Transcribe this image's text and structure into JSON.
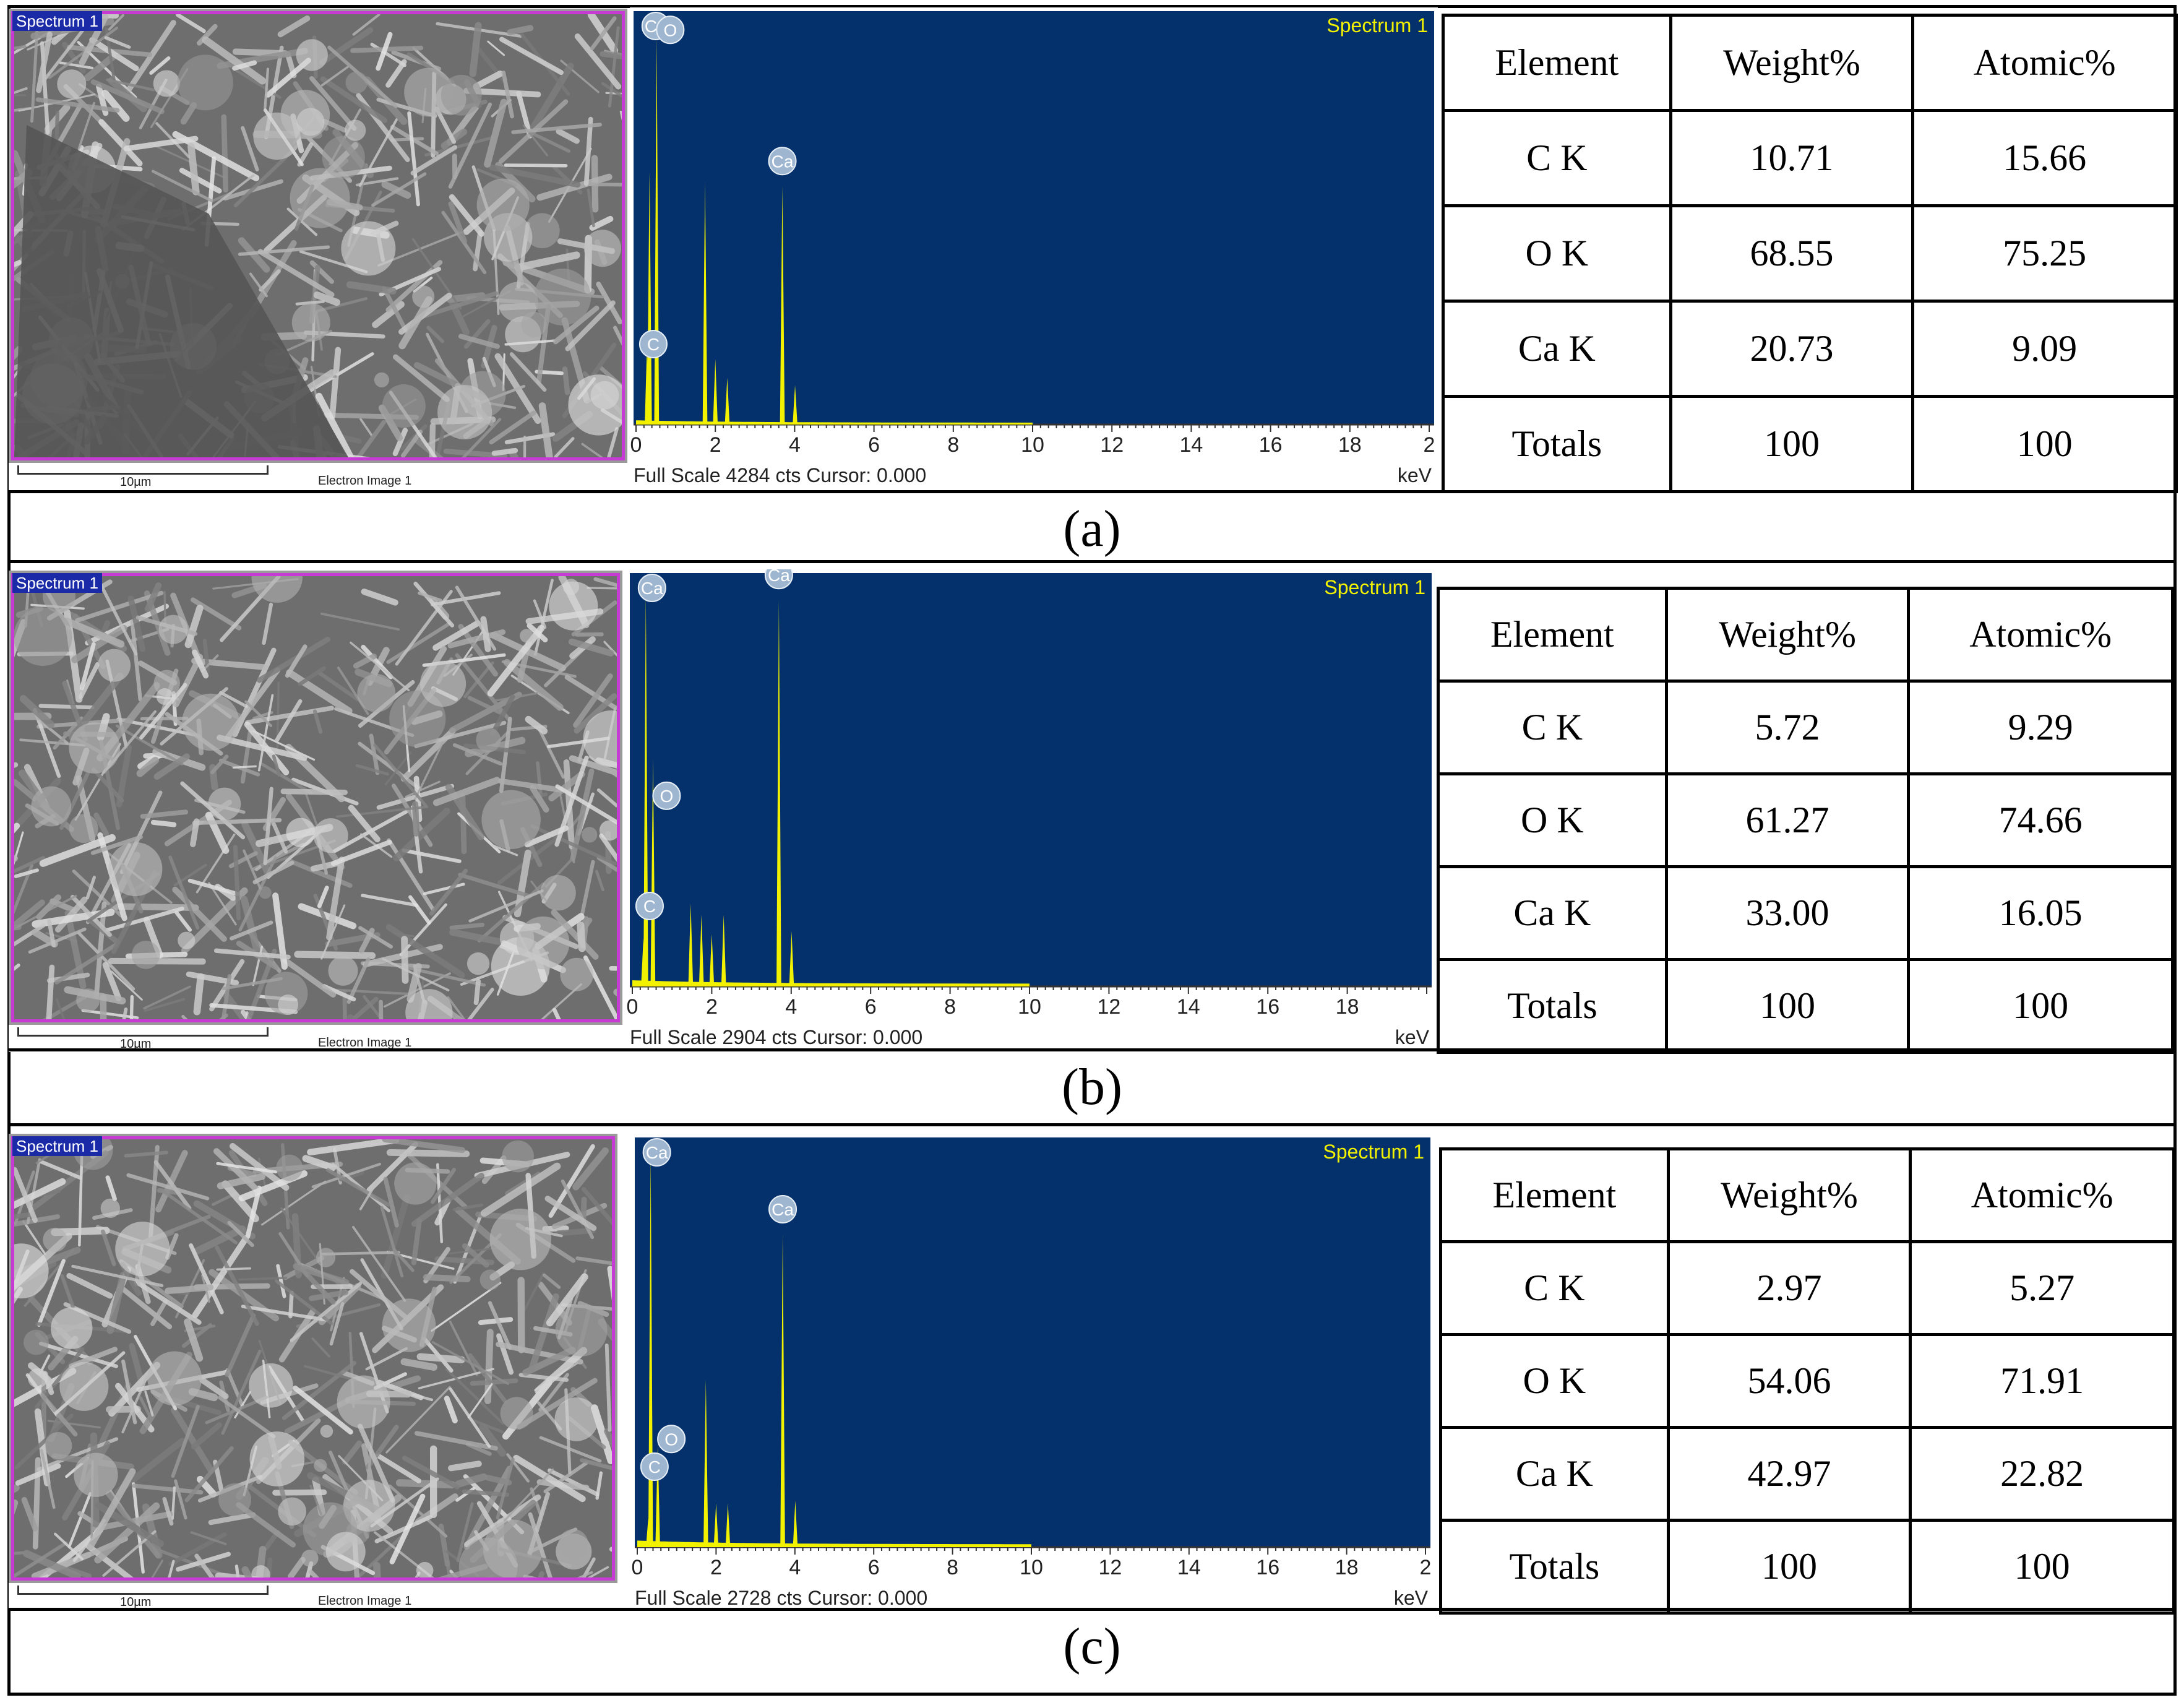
{
  "panels": [
    {
      "caption": "(a)",
      "sem": {
        "tag": "Spectrum 1",
        "scale": "10µm",
        "label": "Electron Image 1"
      },
      "spectrum": {
        "title": "Spectrum 1",
        "footer": "Full Scale 4284 cts Cursor: 0.000",
        "unit": "keV",
        "xticks": [
          "0",
          "2",
          "4",
          "6",
          "8",
          "10",
          "12",
          "14",
          "16",
          "18",
          "2"
        ]
      },
      "table": {
        "headers": [
          "Element",
          "Weight%",
          "Atomic%"
        ],
        "rows": [
          [
            "C K",
            "10.71",
            "15.66"
          ],
          [
            "O K",
            "68.55",
            "75.25"
          ],
          [
            "Ca K",
            "20.73",
            "9.09"
          ],
          [
            "Totals",
            "100",
            "100"
          ]
        ]
      }
    },
    {
      "caption": "(b)",
      "sem": {
        "tag": "Spectrum 1",
        "scale": "10µm",
        "label": "Electron Image 1"
      },
      "spectrum": {
        "title": "Spectrum 1",
        "footer": "Full Scale 2904 cts Cursor: 0.000",
        "unit": "keV",
        "xticks": [
          "0",
          "2",
          "4",
          "6",
          "8",
          "10",
          "12",
          "14",
          "16",
          "18"
        ]
      },
      "table": {
        "headers": [
          "Element",
          "Weight%",
          "Atomic%"
        ],
        "rows": [
          [
            "C K",
            "5.72",
            "9.29"
          ],
          [
            "O K",
            "61.27",
            "74.66"
          ],
          [
            "Ca K",
            "33.00",
            "16.05"
          ],
          [
            "Totals",
            "100",
            "100"
          ]
        ]
      }
    },
    {
      "caption": "(c)",
      "sem": {
        "tag": "Spectrum 1",
        "scale": "10µm",
        "label": "Electron Image 1"
      },
      "spectrum": {
        "title": "Spectrum 1",
        "footer": "Full Scale 2728 cts Cursor: 0.000",
        "unit": "keV",
        "xticks": [
          "0",
          "2",
          "4",
          "6",
          "8",
          "10",
          "12",
          "14",
          "16",
          "18",
          "2"
        ]
      },
      "table": {
        "headers": [
          "Element",
          "Weight%",
          "Atomic%"
        ],
        "rows": [
          [
            "C K",
            "2.97",
            "5.27"
          ],
          [
            "O K",
            "54.06",
            "71.91"
          ],
          [
            "Ca K",
            "42.97",
            "22.82"
          ],
          [
            "Totals",
            "100",
            "100"
          ]
        ]
      }
    }
  ],
  "chart_data": [
    {
      "type": "line",
      "title": "Spectrum 1",
      "xlabel": "keV",
      "xlim": [
        0,
        20
      ],
      "ylim": [
        0,
        4284
      ],
      "peak_labels": [
        {
          "element": "Ca",
          "x": 0.34
        },
        {
          "element": "O",
          "x": 0.52
        },
        {
          "element": "C",
          "x": 0.28
        },
        {
          "element": "Ca",
          "x": 3.69
        }
      ],
      "series": [
        {
          "x": [
            0.28,
            0.34,
            0.52,
            1.74,
            2.0,
            2.3,
            3.69,
            4.01
          ],
          "values": [
            900,
            2700,
            4150,
            2600,
            700,
            500,
            2550,
            420
          ]
        }
      ]
    },
    {
      "type": "line",
      "title": "Spectrum 1",
      "xlabel": "keV",
      "xlim": [
        0,
        20
      ],
      "ylim": [
        0,
        2904
      ],
      "peak_labels": [
        {
          "element": "Ca",
          "x": 0.34
        },
        {
          "element": "O",
          "x": 0.52
        },
        {
          "element": "C",
          "x": 0.28
        },
        {
          "element": "Ca",
          "x": 3.69
        }
      ],
      "series": [
        {
          "x": [
            0.28,
            0.34,
            0.52,
            1.47,
            1.74,
            2.0,
            2.3,
            3.69,
            4.01
          ],
          "values": [
            350,
            2850,
            1650,
            600,
            520,
            380,
            520,
            2800,
            400
          ]
        }
      ]
    },
    {
      "type": "line",
      "title": "Spectrum 1",
      "xlabel": "keV",
      "xlim": [
        0,
        20
      ],
      "ylim": [
        0,
        2728
      ],
      "peak_labels": [
        {
          "element": "Ca",
          "x": 0.34
        },
        {
          "element": "O",
          "x": 0.52
        },
        {
          "element": "C",
          "x": 0.28
        },
        {
          "element": "Ca",
          "x": 3.69
        }
      ],
      "series": [
        {
          "x": [
            0.28,
            0.34,
            0.52,
            1.74,
            2.0,
            2.3,
            3.69,
            4.01
          ],
          "values": [
            200,
            2700,
            700,
            1150,
            300,
            300,
            2150,
            320
          ]
        }
      ]
    }
  ]
}
